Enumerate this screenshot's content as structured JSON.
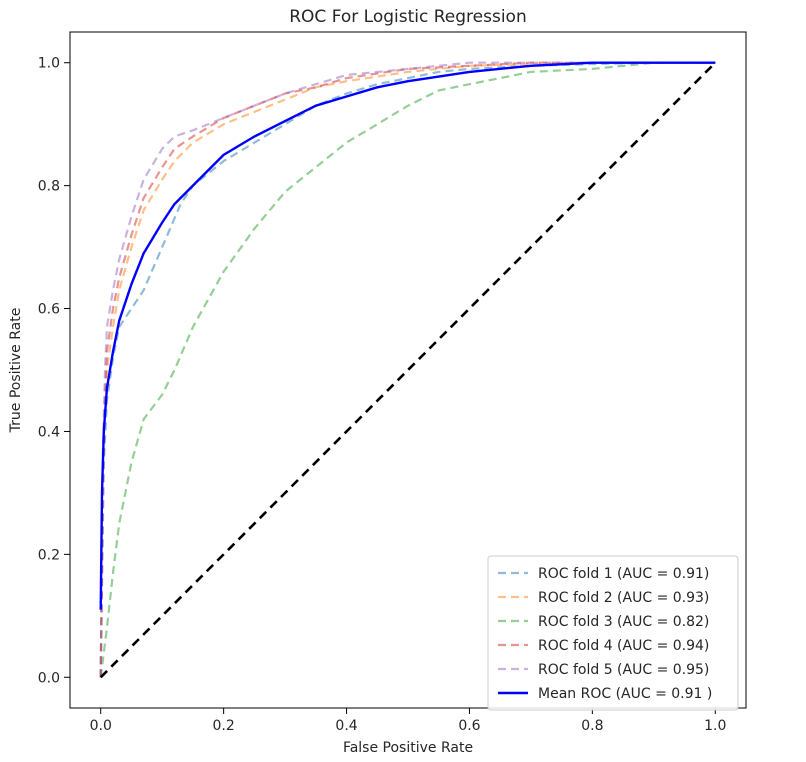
{
  "chart_data": {
    "type": "line",
    "title": "ROC For Logistic Regression",
    "xlabel": "False Positive Rate",
    "ylabel": "True Positive Rate",
    "xlim": [
      -0.05,
      1.05
    ],
    "ylim": [
      -0.05,
      1.05
    ],
    "xticks": [
      0.0,
      0.2,
      0.4,
      0.6,
      0.8,
      1.0
    ],
    "yticks": [
      0.0,
      0.2,
      0.4,
      0.6,
      0.8,
      1.0
    ],
    "xtick_labels": [
      "0.0",
      "0.2",
      "0.4",
      "0.6",
      "0.8",
      "1.0"
    ],
    "ytick_labels": [
      "0.0",
      "0.2",
      "0.4",
      "0.6",
      "0.8",
      "1.0"
    ],
    "grid": false,
    "legend_position": "lower-right",
    "series": [
      {
        "name": "ROC fold 1 (AUC = 0.91)",
        "color": "#1f77b4",
        "style": "dashed",
        "x": [
          0,
          0.005,
          0.01,
          0.02,
          0.03,
          0.05,
          0.07,
          0.1,
          0.13,
          0.15,
          0.2,
          0.25,
          0.3,
          0.35,
          0.4,
          0.45,
          0.5,
          0.55,
          0.6,
          0.7,
          0.8,
          0.9,
          1.0
        ],
        "y": [
          0,
          0.35,
          0.45,
          0.52,
          0.57,
          0.6,
          0.63,
          0.7,
          0.77,
          0.8,
          0.84,
          0.87,
          0.9,
          0.93,
          0.95,
          0.965,
          0.975,
          0.985,
          0.99,
          0.995,
          0.998,
          1.0,
          1.0
        ]
      },
      {
        "name": "ROC fold 2 (AUC = 0.93)",
        "color": "#ff7f0e",
        "style": "dashed",
        "x": [
          0,
          0.005,
          0.01,
          0.02,
          0.03,
          0.05,
          0.07,
          0.1,
          0.12,
          0.15,
          0.2,
          0.25,
          0.3,
          0.35,
          0.4,
          0.5,
          0.6,
          0.7,
          0.8,
          0.9,
          1.0
        ],
        "y": [
          0,
          0.4,
          0.5,
          0.57,
          0.63,
          0.7,
          0.76,
          0.81,
          0.84,
          0.87,
          0.9,
          0.92,
          0.94,
          0.96,
          0.97,
          0.985,
          0.995,
          0.998,
          1.0,
          1.0,
          1.0
        ]
      },
      {
        "name": "ROC fold 3 (AUC = 0.82)",
        "color": "#2ca02c",
        "style": "dashed",
        "x": [
          0,
          0.01,
          0.02,
          0.03,
          0.05,
          0.07,
          0.1,
          0.12,
          0.15,
          0.2,
          0.25,
          0.3,
          0.35,
          0.4,
          0.45,
          0.5,
          0.55,
          0.6,
          0.65,
          0.7,
          0.8,
          0.9,
          1.0
        ],
        "y": [
          0,
          0.08,
          0.17,
          0.25,
          0.35,
          0.42,
          0.46,
          0.5,
          0.57,
          0.66,
          0.73,
          0.79,
          0.83,
          0.87,
          0.9,
          0.93,
          0.955,
          0.965,
          0.975,
          0.985,
          0.99,
          1.0,
          1.0
        ]
      },
      {
        "name": "ROC fold 4 (AUC = 0.94)",
        "color": "#d62728",
        "style": "dashed",
        "x": [
          0,
          0.003,
          0.007,
          0.01,
          0.02,
          0.03,
          0.05,
          0.07,
          0.1,
          0.12,
          0.15,
          0.2,
          0.25,
          0.3,
          0.35,
          0.4,
          0.5,
          0.6,
          0.7,
          0.8,
          0.9,
          1.0
        ],
        "y": [
          0,
          0.3,
          0.45,
          0.53,
          0.6,
          0.65,
          0.72,
          0.78,
          0.83,
          0.86,
          0.88,
          0.91,
          0.93,
          0.95,
          0.96,
          0.975,
          0.99,
          0.995,
          1.0,
          1.0,
          1.0,
          1.0
        ]
      },
      {
        "name": "ROC fold 5 (AUC = 0.95)",
        "color": "#9467bd",
        "style": "dashed",
        "x": [
          0,
          0.003,
          0.007,
          0.01,
          0.02,
          0.03,
          0.05,
          0.07,
          0.1,
          0.12,
          0.15,
          0.2,
          0.25,
          0.3,
          0.35,
          0.4,
          0.5,
          0.6,
          0.7,
          0.8,
          0.9,
          1.0
        ],
        "y": [
          0,
          0.35,
          0.5,
          0.57,
          0.63,
          0.68,
          0.75,
          0.81,
          0.86,
          0.88,
          0.89,
          0.91,
          0.93,
          0.95,
          0.965,
          0.98,
          0.99,
          1.0,
          1.0,
          1.0,
          1.0,
          1.0
        ]
      },
      {
        "name": "Mean ROC (AUC = 0.91 )",
        "color": "#0000ff",
        "style": "solid",
        "x": [
          0,
          0.002,
          0.005,
          0.01,
          0.02,
          0.03,
          0.05,
          0.07,
          0.1,
          0.12,
          0.15,
          0.2,
          0.25,
          0.3,
          0.35,
          0.4,
          0.45,
          0.5,
          0.6,
          0.7,
          0.8,
          0.9,
          1.0
        ],
        "y": [
          0.11,
          0.3,
          0.4,
          0.47,
          0.53,
          0.58,
          0.64,
          0.69,
          0.74,
          0.77,
          0.8,
          0.85,
          0.88,
          0.905,
          0.93,
          0.945,
          0.96,
          0.97,
          0.985,
          0.995,
          1.0,
          1.0,
          1.0
        ]
      },
      {
        "name": "",
        "color": "#000000",
        "style": "dashed",
        "x": [
          0,
          1
        ],
        "y": [
          0,
          1
        ]
      }
    ]
  }
}
